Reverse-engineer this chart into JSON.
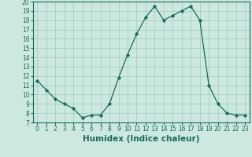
{
  "xlabel": "Humidex (Indice chaleur)",
  "ylabel": "",
  "x": [
    0,
    1,
    2,
    3,
    4,
    5,
    6,
    7,
    8,
    9,
    10,
    11,
    12,
    13,
    14,
    15,
    16,
    17,
    18,
    19,
    20,
    21,
    22,
    23
  ],
  "y": [
    11.5,
    10.5,
    9.5,
    9.0,
    8.5,
    7.5,
    7.8,
    7.8,
    9.0,
    11.8,
    14.3,
    16.5,
    18.3,
    19.5,
    18.0,
    18.5,
    19.0,
    19.5,
    18.0,
    11.0,
    9.0,
    8.0,
    7.8,
    7.8
  ],
  "line_color": "#1a6b5a",
  "marker": "D",
  "marker_size": 2.2,
  "bg_color": "#cce8e0",
  "grid_color": "#99ccbb",
  "xlim": [
    -0.5,
    23.5
  ],
  "ylim": [
    7,
    20
  ],
  "yticks": [
    7,
    8,
    9,
    10,
    11,
    12,
    13,
    14,
    15,
    16,
    17,
    18,
    19,
    20
  ],
  "xticks": [
    0,
    1,
    2,
    3,
    4,
    5,
    6,
    7,
    8,
    9,
    10,
    11,
    12,
    13,
    14,
    15,
    16,
    17,
    18,
    19,
    20,
    21,
    22,
    23
  ],
  "tick_fontsize": 5.5,
  "label_fontsize": 7.5
}
